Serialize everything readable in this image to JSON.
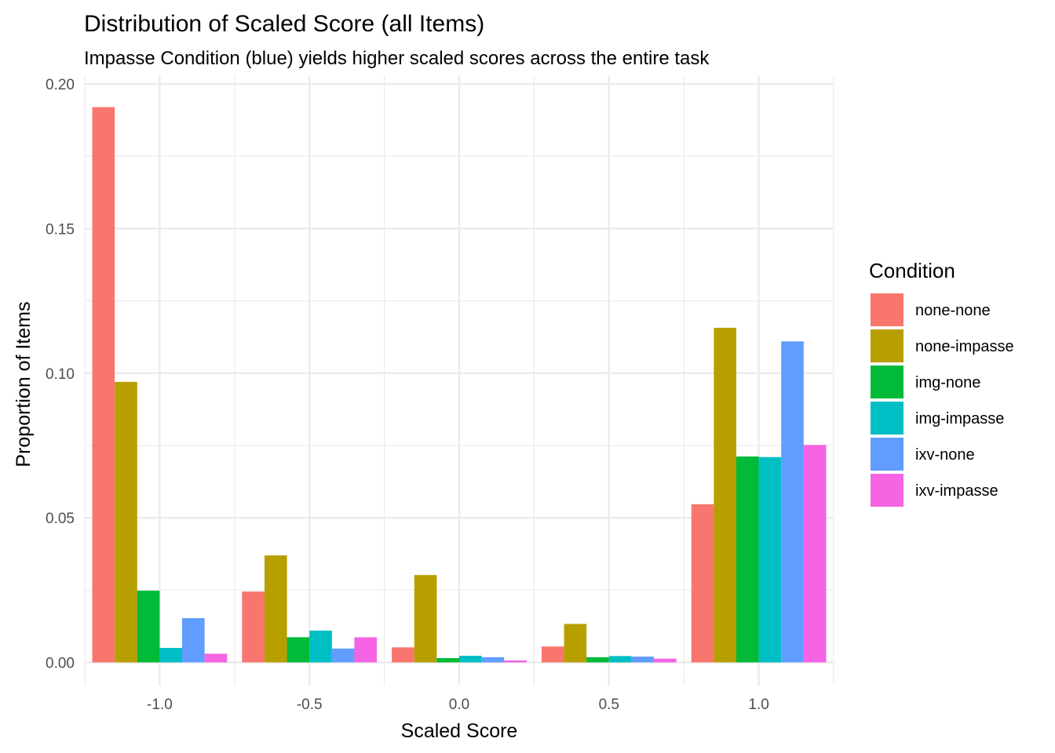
{
  "chart_data": {
    "type": "bar",
    "title": "Distribution of Scaled Score (all Items)",
    "subtitle": "Impasse Condition (blue) yields higher scaled scores across the entire task",
    "xlabel": "Scaled Score",
    "ylabel": "Proportion of Items",
    "x": [
      -1.0,
      -0.5,
      0.0,
      0.5,
      1.0
    ],
    "x_tick_labels": [
      "-1.0",
      "-0.5",
      "0.0",
      "0.5",
      "1.0"
    ],
    "y_ticks": [
      0.0,
      0.05,
      0.1,
      0.15,
      0.2
    ],
    "y_tick_labels": [
      "0.00",
      "0.05",
      "0.10",
      "0.15",
      "0.20"
    ],
    "xlim": [
      -1.25,
      1.25
    ],
    "ylim": [
      -0.008,
      0.203
    ],
    "grid": true,
    "legend": {
      "title": "Condition",
      "position": "right"
    },
    "series": [
      {
        "name": "none-none",
        "color": "#F8766D",
        "values": [
          0.192,
          0.0245,
          0.0052,
          0.0055,
          0.0547
        ]
      },
      {
        "name": "none-impasse",
        "color": "#B79F00",
        "values": [
          0.097,
          0.037,
          0.0302,
          0.0133,
          0.1157
        ]
      },
      {
        "name": "img-none",
        "color": "#00BA38",
        "values": [
          0.0248,
          0.0087,
          0.0015,
          0.0018,
          0.0712
        ]
      },
      {
        "name": "img-impasse",
        "color": "#00BFC4",
        "values": [
          0.005,
          0.011,
          0.0023,
          0.0022,
          0.071
        ]
      },
      {
        "name": "ixv-none",
        "color": "#619CFF",
        "values": [
          0.0153,
          0.0048,
          0.0018,
          0.002,
          0.111
        ]
      },
      {
        "name": "ixv-impasse",
        "color": "#F564E3",
        "values": [
          0.003,
          0.0087,
          0.0007,
          0.0013,
          0.0752
        ]
      }
    ]
  }
}
